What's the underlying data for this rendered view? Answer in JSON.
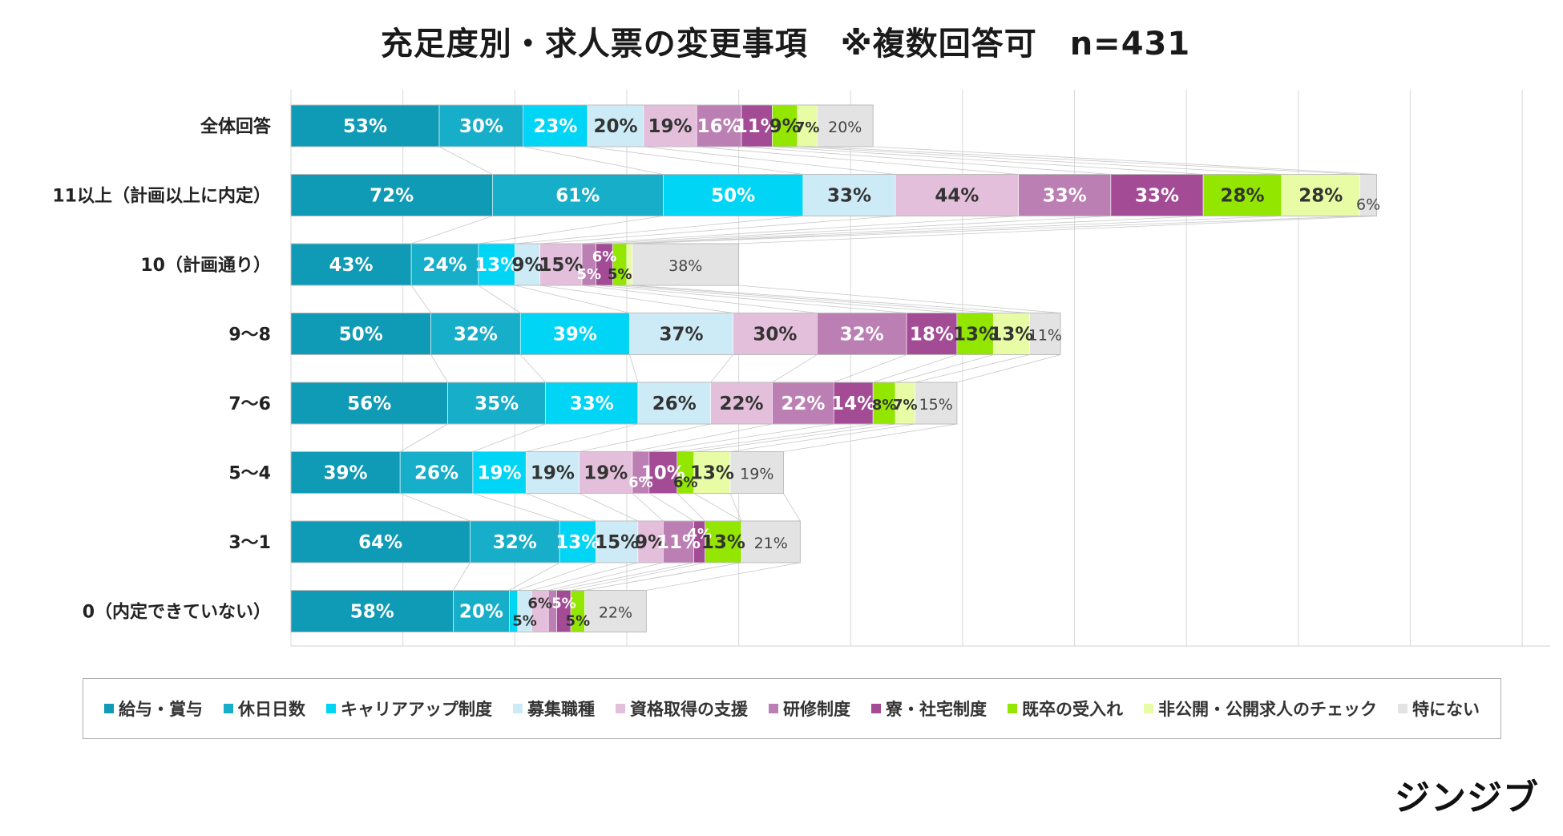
{
  "title": "充足度別・求人票の変更事項　※複数回答可　n=431",
  "logo": "ジンジブ",
  "chart_data": {
    "type": "bar",
    "stacked": true,
    "orientation": "horizontal",
    "categories": [
      "全体回答",
      "11以上（計画以上に内定）",
      "10（計画通り）",
      "9～8",
      "7～6",
      "5～4",
      "3～1",
      "0（内定できていない）"
    ],
    "series": [
      {
        "name": "給与・賞与",
        "color": "#0f9ab5",
        "values": [
          53,
          72,
          43,
          50,
          56,
          39,
          64,
          58
        ]
      },
      {
        "name": "休日日数",
        "color": "#17aec9",
        "values": [
          30,
          61,
          24,
          32,
          35,
          26,
          32,
          20
        ]
      },
      {
        "name": "キャリアアップ制度",
        "color": "#00d5f5",
        "values": [
          23,
          50,
          13,
          39,
          33,
          19,
          13,
          3
        ]
      },
      {
        "name": "募集職種",
        "color": "#cdeaf7",
        "values": [
          20,
          33,
          9,
          37,
          26,
          19,
          15,
          5
        ]
      },
      {
        "name": "資格取得の支援",
        "color": "#e3bfdb",
        "values": [
          19,
          44,
          15,
          30,
          22,
          19,
          9,
          6
        ]
      },
      {
        "name": "研修制度",
        "color": "#bc7fb4",
        "values": [
          16,
          33,
          5,
          32,
          22,
          6,
          11,
          3
        ]
      },
      {
        "name": "寮・社宅制度",
        "color": "#a34b95",
        "values": [
          11,
          33,
          6,
          18,
          14,
          10,
          4,
          5
        ]
      },
      {
        "name": "既卒の受入れ",
        "color": "#92e600",
        "values": [
          9,
          28,
          5,
          13,
          8,
          6,
          13,
          5
        ]
      },
      {
        "name": "非公開・公開求人のチェック",
        "color": "#e7fca4",
        "values": [
          7,
          28,
          2,
          13,
          7,
          13,
          0,
          0
        ]
      },
      {
        "name": "特にない",
        "color": "#e3e3e3",
        "values": [
          20,
          6,
          38,
          11,
          15,
          19,
          21,
          22
        ]
      }
    ],
    "labels": [
      [
        "53%",
        "30%",
        "23%",
        "20%",
        "19%",
        "16%",
        "11%",
        "9%",
        "7%",
        "20%"
      ],
      [
        "72%",
        "61%",
        "50%",
        "33%",
        "44%",
        "33%",
        "33%",
        "28%",
        "28%",
        "6%"
      ],
      [
        "43%",
        "24%",
        "13%",
        "9%",
        "15%",
        "5%",
        "6%",
        "5%",
        "",
        "38%"
      ],
      [
        "50%",
        "32%",
        "39%",
        "37%",
        "30%",
        "32%",
        "18%",
        "13%",
        "13%",
        "11%"
      ],
      [
        "56%",
        "35%",
        "33%",
        "26%",
        "22%",
        "22%",
        "14%",
        "8%",
        "7%",
        "15%"
      ],
      [
        "39%",
        "26%",
        "19%",
        "19%",
        "19%",
        "6%",
        "10%",
        "6%",
        "13%",
        "19%"
      ],
      [
        "64%",
        "32%",
        "13%",
        "15%",
        "9%",
        "11%",
        "4%",
        "13%",
        "",
        "21%"
      ],
      [
        "58%",
        "20%",
        "",
        "5%",
        "6%",
        "",
        "5%",
        "5%",
        "",
        "22%"
      ]
    ],
    "xlim": [
      0,
      450
    ],
    "grid": true,
    "legend": "bottom"
  }
}
